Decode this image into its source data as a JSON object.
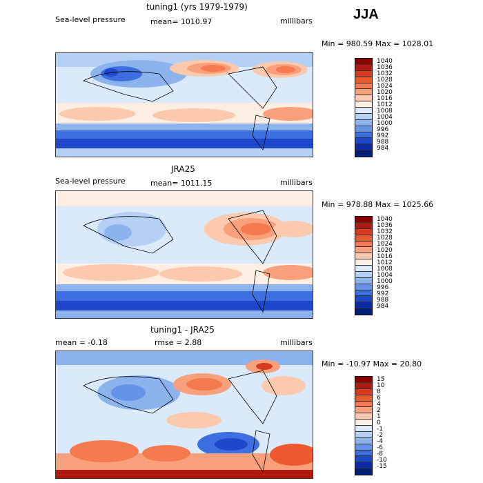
{
  "season": "JJA",
  "chart_data": [
    {
      "type": "heatmap",
      "title": "tuning1 (yrs 1979-1979)",
      "variable": "Sea-level pressure",
      "mean_text": "mean= 1010.97",
      "units": "millibars",
      "minmax_text": "Min = 980.59 Max = 1028.01",
      "levels": [
        "1040",
        "1036",
        "1032",
        "1028",
        "1024",
        "1020",
        "1016",
        "1012",
        "1008",
        "1004",
        "1000",
        "996",
        "992",
        "988",
        "984"
      ],
      "colors": [
        "#8b0000",
        "#b01a10",
        "#d83a20",
        "#ee5a30",
        "#f57a50",
        "#f8a07c",
        "#fbc9ad",
        "#fdeee3",
        "#dbeafb",
        "#b6d0f5",
        "#8db3ef",
        "#6593e8",
        "#3d6fe0",
        "#1e48cc",
        "#0a2aa6",
        "#001e7a"
      ]
    },
    {
      "type": "heatmap",
      "title": "JRA25",
      "variable": "Sea-level pressure",
      "mean_text": "mean= 1011.15",
      "units": "millibars",
      "minmax_text": "Min = 978.88 Max = 1025.66",
      "levels": [
        "1040",
        "1036",
        "1032",
        "1028",
        "1024",
        "1020",
        "1016",
        "1012",
        "1008",
        "1004",
        "1000",
        "996",
        "992",
        "988",
        "984"
      ],
      "colors": [
        "#8b0000",
        "#b01a10",
        "#d83a20",
        "#ee5a30",
        "#f57a50",
        "#f8a07c",
        "#fbc9ad",
        "#fdeee3",
        "#dbeafb",
        "#b6d0f5",
        "#8db3ef",
        "#6593e8",
        "#3d6fe0",
        "#1e48cc",
        "#0a2aa6",
        "#001e7a"
      ]
    },
    {
      "type": "heatmap",
      "title": "tuning1 - JRA25",
      "mean_text": "mean =  -0.18",
      "rmse_text": "rmse =   2.88",
      "units": "millibars",
      "minmax_text": "Min = -10.97 Max =  20.80",
      "levels": [
        "15",
        "10",
        "8",
        "6",
        "4",
        "2",
        "1",
        "0",
        "-1",
        "-2",
        "-4",
        "-6",
        "-8",
        "-10",
        "-15"
      ],
      "colors": [
        "#8b0000",
        "#b01a10",
        "#d83a20",
        "#ee5a30",
        "#f57a50",
        "#f8a07c",
        "#fbc9ad",
        "#fdeee3",
        "#dbeafb",
        "#b6d0f5",
        "#8db3ef",
        "#6593e8",
        "#3d6fe0",
        "#1e48cc",
        "#0a2aa6",
        "#001e7a"
      ]
    }
  ]
}
